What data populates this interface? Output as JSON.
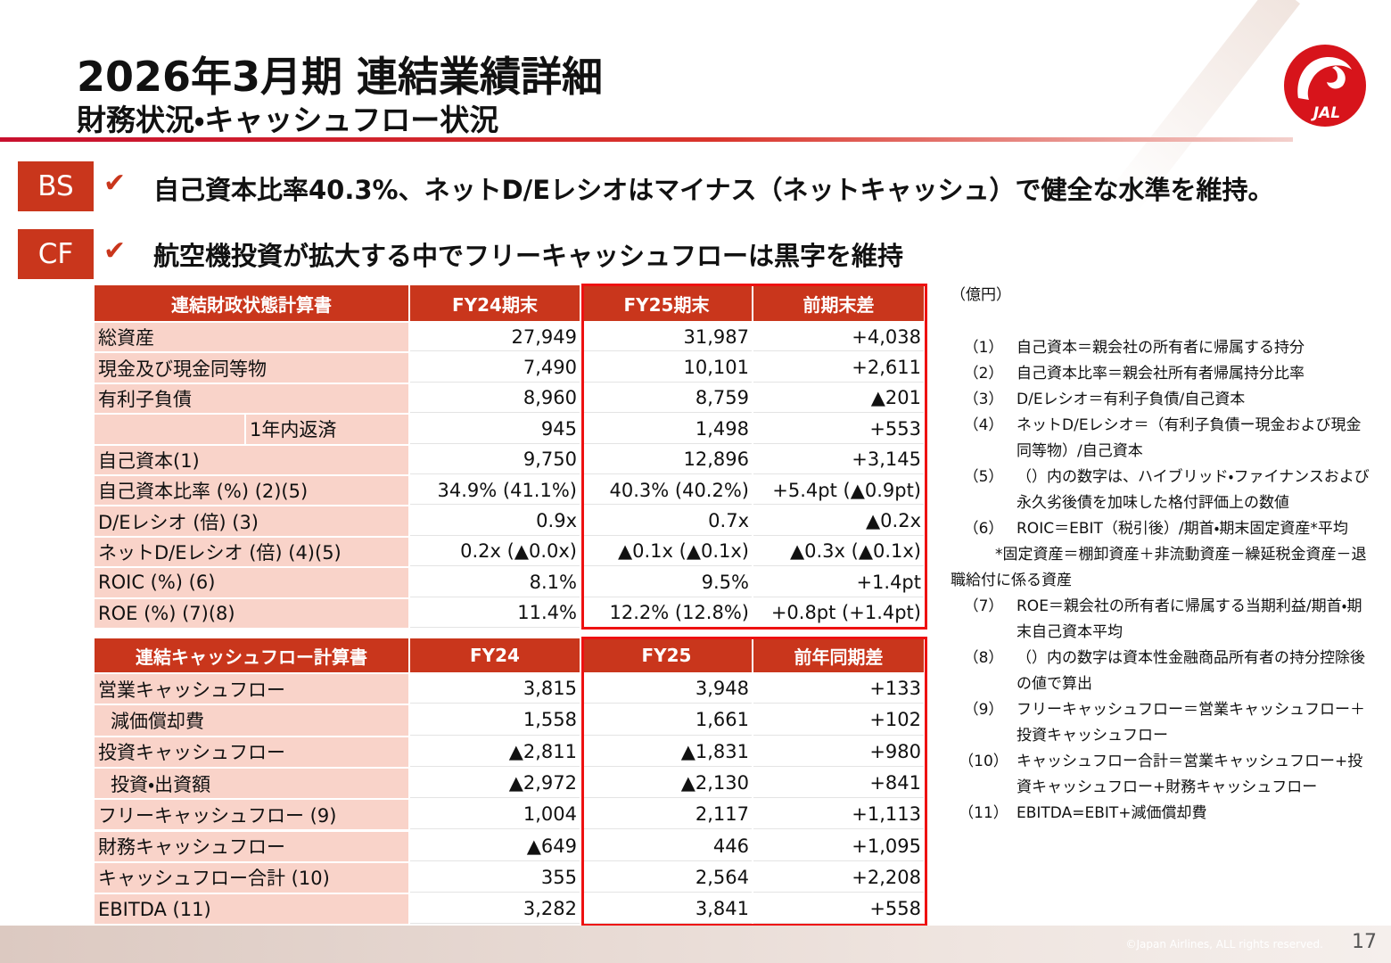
{
  "header": {
    "title": "2026年3月期 連結業績詳細",
    "subtitle": "財務状況・キャッシュフロー状況"
  },
  "logo": {
    "text": "JAL"
  },
  "points": [
    {
      "tag": "BS",
      "check": "✔",
      "text": "自己資本比率40.3%、ネットD/Eレシオはマイナス（ネットキャッシュ）で健全な水準を維持。"
    },
    {
      "tag": "CF",
      "check": "✔",
      "text": "航空機投資が拡大する中でフリーキャッシュフローは黒字を維持"
    }
  ],
  "bs_table": {
    "header": [
      "連結財政状態計算書",
      "FY24期末",
      "FY25期末",
      "前期末差"
    ],
    "rows": [
      {
        "cells": [
          "総資産",
          "27,949",
          "31,987",
          "+4,038"
        ]
      },
      {
        "cells": [
          "現金及び現金同等物",
          "7,490",
          "10,101",
          "+2,611"
        ]
      },
      {
        "cells": [
          "有利子負債",
          "8,960",
          "8,759",
          "▲201"
        ]
      },
      {
        "cells": [
          "1年内返済",
          "945",
          "1,498",
          "+553"
        ],
        "split": true
      },
      {
        "cells": [
          "自己資本(1)",
          "9,750",
          "12,896",
          "+3,145"
        ]
      },
      {
        "cells": [
          "自己資本比率 (%) (2)(5)",
          "34.9% (41.1%)",
          "40.3% (40.2%)",
          "+5.4pt (▲0.9pt)"
        ]
      },
      {
        "cells": [
          "D/Eレシオ (倍) (3)",
          "0.9x",
          "0.7x",
          "▲0.2x"
        ]
      },
      {
        "cells": [
          "ネットD/Eレシオ (倍) (4)(5)",
          "0.2x (▲0.0x)",
          "▲0.1x (▲0.1x)",
          "▲0.3x (▲0.1x)"
        ]
      },
      {
        "cells": [
          "ROIC (%) (6)",
          "8.1%",
          "9.5%",
          "+1.4pt"
        ]
      },
      {
        "cells": [
          "ROE (%) (7)(8)",
          "11.4%",
          "12.2% (12.8%)",
          "+0.8pt (+1.4pt)"
        ]
      }
    ]
  },
  "cf_table": {
    "header": [
      "連結キャッシュフロー計算書",
      "FY24",
      "FY25",
      "前年同期差"
    ],
    "rows": [
      {
        "cells": [
          "営業キャッシュフロー",
          "3,815",
          "3,948",
          "+133"
        ]
      },
      {
        "cells": [
          "減価償却費",
          "1,558",
          "1,661",
          "+102"
        ],
        "indent": true
      },
      {
        "cells": [
          "投資キャッシュフロー",
          "▲2,811",
          "▲1,831",
          "+980"
        ]
      },
      {
        "cells": [
          "投資・出資額",
          "▲2,972",
          "▲2,130",
          "+841"
        ],
        "indent": true
      },
      {
        "cells": [
          "フリーキャッシュフロー (9)",
          "1,004",
          "2,117",
          "+1,113"
        ]
      },
      {
        "cells": [
          "財務キャッシュフロー",
          "▲649",
          "446",
          "+1,095"
        ]
      },
      {
        "cells": [
          "キャッシュフロー合計 (10)",
          "355",
          "2,564",
          "+2,208"
        ]
      },
      {
        "cells": [
          "EBITDA (11)",
          "3,282",
          "3,841",
          "+558"
        ]
      }
    ]
  },
  "unit": "（億円）",
  "notes": [
    {
      "num": "（1）",
      "text": "自己資本＝親会社の所有者に帰属する持分"
    },
    {
      "num": "（2）",
      "text": "自己資本比率＝親会社所有者帰属持分比率"
    },
    {
      "num": "（3）",
      "text": "D/Eレシオ＝有利子負債/自己資本"
    },
    {
      "num": "（4）",
      "text": "ネットD/Eレシオ＝（有利子負債ー現金および現金同等物）/自己資本"
    },
    {
      "num": "（5）",
      "text": "（）内の数字は、ハイブリッド・ファイナンスおよび永久劣後債を加味した格付評価上の数値"
    },
    {
      "num": "（6）",
      "text": "ROIC＝EBIT（税引後）/期首・期末固定資産*平均"
    },
    {
      "num": "（7）",
      "text": "ROE＝親会社の所有者に帰属する当期利益/期首・期末自己資本平均"
    },
    {
      "num": "（8）",
      "text": "（）内の数字は資本性金融商品所有者の持分控除後の値で算出"
    },
    {
      "num": "（9）",
      "text": "フリーキャッシュフロー＝営業キャッシュフロー＋投資キャッシュフロー"
    },
    {
      "num": "（10）",
      "text": "キャッシュフロー合計＝営業キャッシュフロー+投資キャッシュフロー+財務キャッシュフロー"
    },
    {
      "num": "（11）",
      "text": "EBITDA=EBIT+減価償却費"
    }
  ],
  "note_extra": "*固定資産＝棚卸資産＋非流動資産－繰延税金資産－退職給付に係る資産",
  "footer": {
    "copyright": "©Japan Airlines, ALL rights reserved.",
    "page": "17"
  }
}
